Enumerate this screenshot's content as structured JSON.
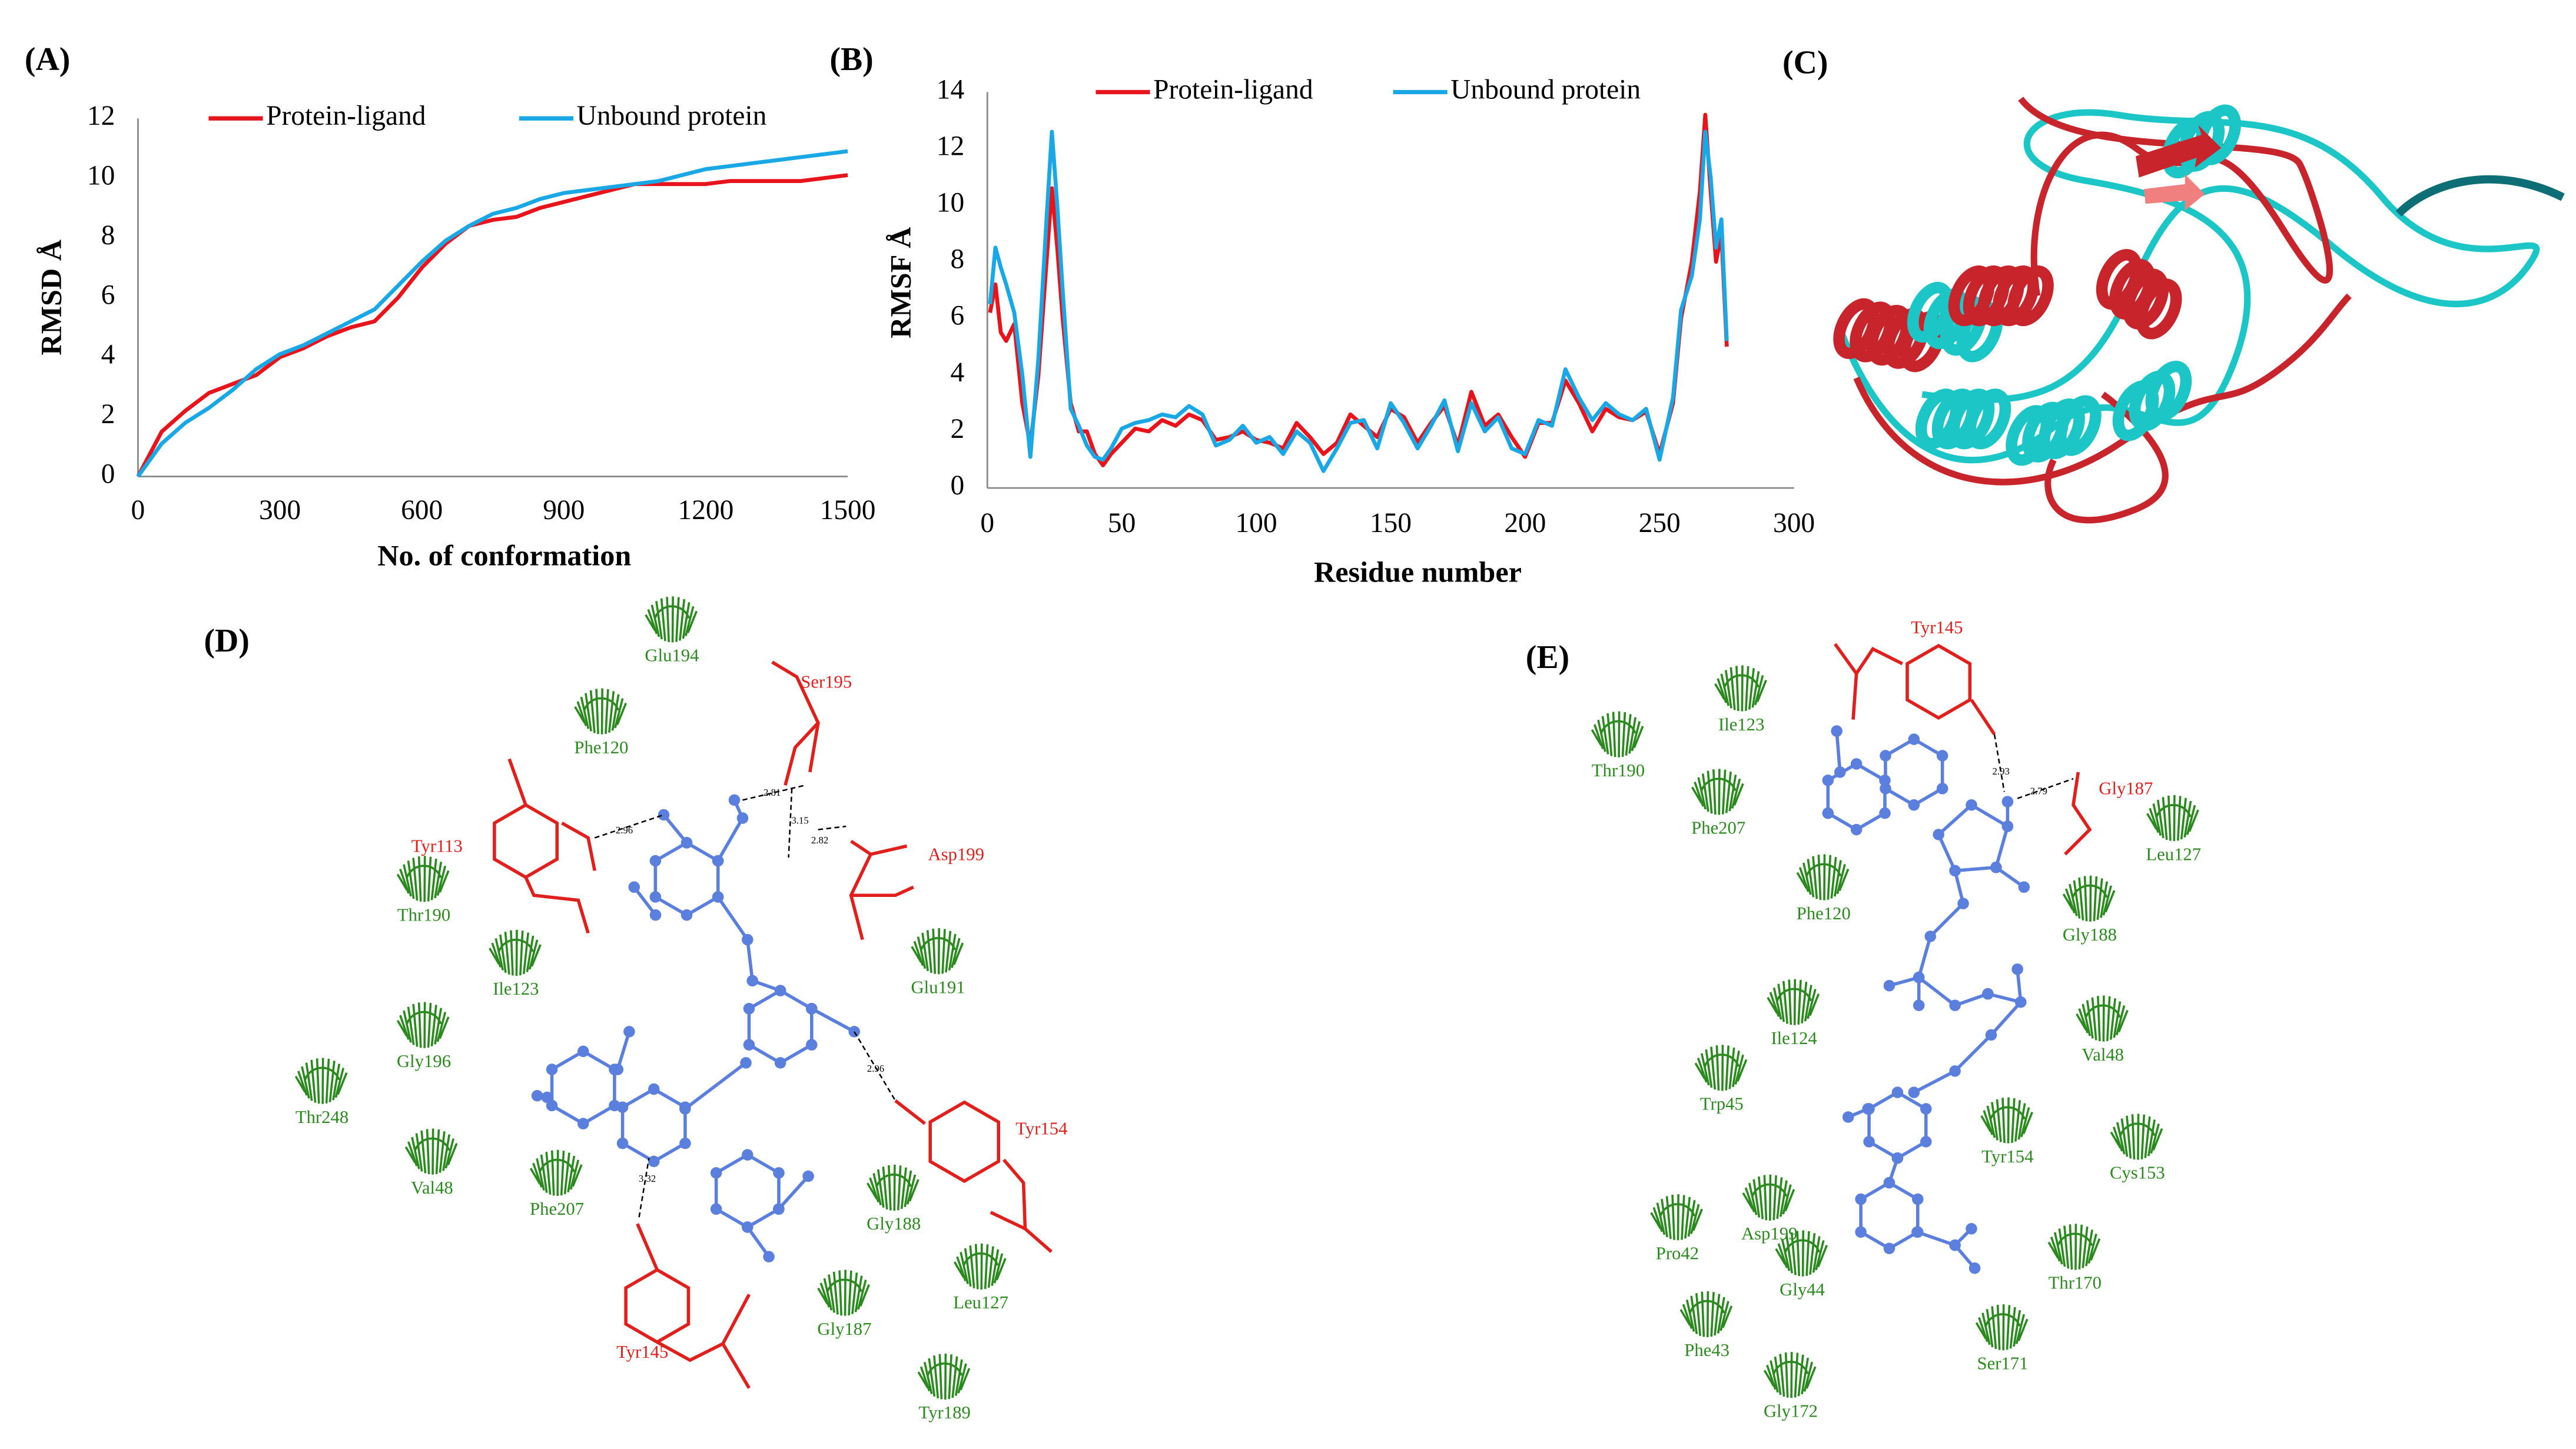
{
  "chart_data": [
    {
      "type": "line",
      "panel_label": "(A)",
      "xlabel": "No. of conformation",
      "ylabel": "RMSD Å",
      "x": [
        0,
        50,
        100,
        150,
        200,
        250,
        300,
        350,
        400,
        450,
        500,
        550,
        600,
        650,
        700,
        750,
        800,
        850,
        900,
        950,
        1000,
        1050,
        1100,
        1150,
        1200,
        1250,
        1300,
        1350,
        1400,
        1450,
        1500
      ],
      "series": [
        {
          "name": "Protein-ligand",
          "color": "#e8141c",
          "values": [
            0,
            1.5,
            2.2,
            2.8,
            3.1,
            3.4,
            4.0,
            4.3,
            4.7,
            5.0,
            5.2,
            6.0,
            7.0,
            7.8,
            8.4,
            8.6,
            8.7,
            9.0,
            9.2,
            9.4,
            9.6,
            9.8,
            9.8,
            9.8,
            9.8,
            9.9,
            9.9,
            9.9,
            9.9,
            10.0,
            10.1
          ]
        },
        {
          "name": "Unbound protein",
          "color": "#1aa7e6",
          "values": [
            0,
            1.1,
            1.8,
            2.3,
            2.9,
            3.6,
            4.1,
            4.4,
            4.8,
            5.2,
            5.6,
            6.4,
            7.2,
            7.9,
            8.4,
            8.8,
            9.0,
            9.3,
            9.5,
            9.6,
            9.7,
            9.8,
            9.9,
            10.1,
            10.3,
            10.4,
            10.5,
            10.6,
            10.7,
            10.8,
            10.9
          ]
        }
      ],
      "xlim": [
        0,
        1500
      ],
      "xticks": [
        0,
        300,
        600,
        900,
        1200,
        1500
      ],
      "ylim": [
        0,
        12
      ],
      "yticks": [
        0,
        2,
        4,
        6,
        8,
        10,
        12
      ],
      "grid": false,
      "legend": "top"
    },
    {
      "type": "line",
      "panel_label": "(B)",
      "xlabel": "Residue number",
      "ylabel": "RMSF Å",
      "x": [
        1,
        3,
        5,
        7,
        10,
        13,
        16,
        19,
        22,
        24,
        26,
        28,
        31,
        34,
        37,
        40,
        43,
        46,
        50,
        55,
        60,
        65,
        70,
        75,
        80,
        85,
        90,
        95,
        100,
        105,
        110,
        115,
        120,
        125,
        130,
        135,
        140,
        145,
        150,
        155,
        160,
        165,
        170,
        175,
        180,
        185,
        190,
        195,
        200,
        205,
        210,
        215,
        220,
        225,
        230,
        235,
        240,
        245,
        250,
        255,
        258,
        262,
        265,
        267,
        269,
        271,
        273,
        275
      ],
      "series": [
        {
          "name": "Protein-ligand",
          "color": "#e8141c",
          "values": [
            6.2,
            7.2,
            5.5,
            5.2,
            5.8,
            3.0,
            1.5,
            4.0,
            8.0,
            10.6,
            8.5,
            6.0,
            3.0,
            2.0,
            2.0,
            1.2,
            0.8,
            1.2,
            1.6,
            2.1,
            2.0,
            2.4,
            2.2,
            2.6,
            2.4,
            1.7,
            1.8,
            2.0,
            1.7,
            1.6,
            1.4,
            2.3,
            1.8,
            1.2,
            1.6,
            2.6,
            2.2,
            1.8,
            2.8,
            2.5,
            1.6,
            2.3,
            2.9,
            1.5,
            3.4,
            2.2,
            2.6,
            1.8,
            1.1,
            2.3,
            2.3,
            3.8,
            3.0,
            2.0,
            2.8,
            2.5,
            2.4,
            2.7,
            1.2,
            3.0,
            6.0,
            8.0,
            10.5,
            13.2,
            10.5,
            8.0,
            9.0,
            5.0
          ]
        },
        {
          "name": "Unbound protein",
          "color": "#1aa7e6",
          "values": [
            6.5,
            8.5,
            7.8,
            7.2,
            6.2,
            4.0,
            1.1,
            4.6,
            9.5,
            12.6,
            10.0,
            7.0,
            2.8,
            2.2,
            1.5,
            1.1,
            1.0,
            1.4,
            2.1,
            2.3,
            2.4,
            2.6,
            2.5,
            2.9,
            2.6,
            1.5,
            1.7,
            2.2,
            1.6,
            1.8,
            1.2,
            2.0,
            1.6,
            0.6,
            1.4,
            2.3,
            2.4,
            1.4,
            3.0,
            2.3,
            1.4,
            2.2,
            3.1,
            1.3,
            3.0,
            2.0,
            2.5,
            1.4,
            1.2,
            2.4,
            2.2,
            4.2,
            3.2,
            2.4,
            3.0,
            2.6,
            2.4,
            2.8,
            1.0,
            3.2,
            6.3,
            7.5,
            9.5,
            12.6,
            11.0,
            8.5,
            9.5,
            5.2
          ]
        }
      ],
      "xlim": [
        0,
        300
      ],
      "xticks": [
        0,
        50,
        100,
        150,
        200,
        250,
        300
      ],
      "ylim": [
        0,
        14
      ],
      "yticks": [
        0,
        2,
        4,
        6,
        8,
        10,
        12,
        14
      ],
      "grid": false,
      "legend": "top"
    }
  ],
  "panel_c": {
    "label": "(C)"
  },
  "panel_d": {
    "label": "(D)",
    "hbond_residues": [
      "Ser195",
      "Tyr113",
      "Asp199",
      "Tyr154",
      "Tyr145"
    ],
    "hydrophobic_residues": [
      "Glu194",
      "Phe120",
      "Thr190",
      "Ile123",
      "Gly196",
      "Thr248",
      "Val48",
      "Phe207",
      "Glu191",
      "Gly188",
      "Leu127",
      "Gly187",
      "Tyr189"
    ],
    "hbond_distances": [
      "2.96",
      "2.81",
      "3.15",
      "2.82",
      "2.96",
      "3.32"
    ]
  },
  "panel_e": {
    "label": "(E)",
    "hbond_residues": [
      "Tyr145",
      "Gly187"
    ],
    "hydrophobic_residues": [
      "Ile123",
      "Thr190",
      "Phe207",
      "Leu127",
      "Phe120",
      "Gly188",
      "Ile124",
      "Val48",
      "Trp45",
      "Tyr154",
      "Cys153",
      "Asp199",
      "Pro42",
      "Gly44",
      "Thr170",
      "Phe43",
      "Ser171",
      "Gly172"
    ],
    "hbond_distances": [
      "2.93",
      "2.79"
    ]
  }
}
